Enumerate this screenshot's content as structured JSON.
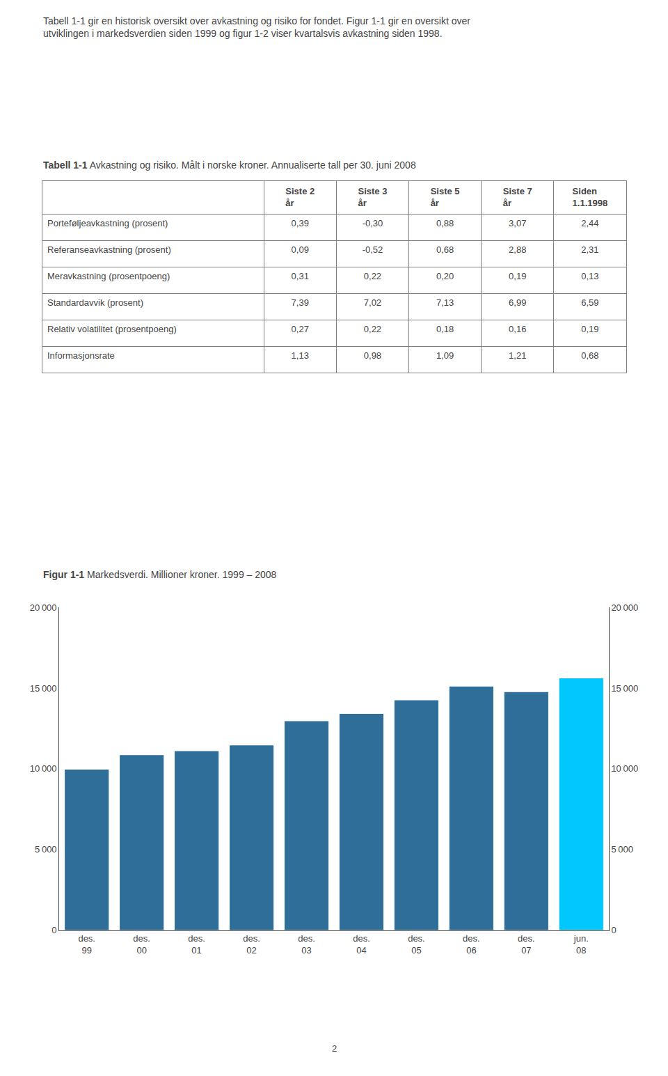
{
  "chart_data": [
    {
      "type": "table",
      "title": "Tabell 1-1",
      "subtitle": "Avkastning og risiko. Målt i norske kroner. Annualiserte tall per 30. juni 2008",
      "annotations": [
        "Tabell 1-1 gir en historisk oversikt over avkastning og risiko for fondet. Figur 1-1 gir en oversikt over utviklingen i markedsverdien siden 1999 og figur 1-2 viser kvartalsvis avkastning siden 1998."
      ],
      "categories": [
        "Porteføljeavkastning (prosent)",
        "Referanseavkastning (prosent)",
        "Meravkastning (prosentpoeng)",
        "Standardavvik (prosent)",
        "Relativ volatilitet (prosentpoeng)",
        "Informasjonsrate"
      ],
      "series": [
        {
          "name": "Siste 2\når",
          "values": [
            0.39,
            0.09,
            0.31,
            7.39,
            0.27,
            1.13
          ],
          "value_labels": [
            "0,39",
            "0,09",
            "0,31",
            "7,39",
            "0,27",
            "1,13"
          ]
        },
        {
          "name": "Siste 3\når",
          "values": [
            -0.3,
            -0.52,
            0.22,
            7.02,
            0.22,
            0.98
          ],
          "value_labels": [
            "-0,30",
            "-0,52",
            "0,22",
            "7,02",
            "0,22",
            "0,98"
          ]
        },
        {
          "name": "Siste 5\når",
          "values": [
            0.88,
            0.68,
            0.2,
            7.13,
            0.18,
            1.09
          ],
          "value_labels": [
            "0,88",
            "0,68",
            "0,20",
            "7,13",
            "0,18",
            "1,09"
          ]
        },
        {
          "name": "Siste 7\når",
          "values": [
            3.07,
            2.88,
            0.19,
            6.99,
            0.16,
            1.21
          ],
          "value_labels": [
            "3,07",
            "2,88",
            "0,19",
            "6,99",
            "0,16",
            "1,21"
          ]
        },
        {
          "name": "Siden\n1.1.1998",
          "values": [
            2.44,
            2.31,
            0.13,
            6.59,
            0.19,
            0.68
          ],
          "value_labels": [
            "2,44",
            "2,31",
            "0,13",
            "6,59",
            "0,19",
            "0,68"
          ]
        }
      ]
    },
    {
      "type": "bar",
      "title": "Figur 1-1",
      "subtitle": "Markedsverdi. Millioner kroner. 1999 – 2008",
      "annotations": [
        "2"
      ],
      "categories": [
        "des.\n99",
        "des.\n00",
        "des.\n01",
        "des.\n02",
        "des.\n03",
        "des.\n04",
        "des.\n05",
        "des.\n06",
        "des.\n07",
        "jun.\n08"
      ],
      "values": [
        9950,
        10850,
        11100,
        11450,
        12950,
        13400,
        14250,
        15100,
        14750,
        15600
      ],
      "colors": [
        "#2e6e99",
        "#2e6e99",
        "#2e6e99",
        "#2e6e99",
        "#2e6e99",
        "#2e6e99",
        "#2e6e99",
        "#2e6e99",
        "#2e6e99",
        "#00c8ff"
      ],
      "ylim": [
        0,
        20000
      ],
      "yticks": [
        0,
        {
          "value": 5000,
          "label": "5 000"
        },
        {
          "value": 10000,
          "label": "10 000"
        },
        {
          "value": 15000,
          "label": "15 000"
        },
        {
          "value": 20000,
          "label": "20 000"
        }
      ],
      "y2lim": [
        0,
        20000
      ],
      "y2ticks": [
        0,
        {
          "value": 5000,
          "label": "5 000"
        },
        {
          "value": 10000,
          "label": "10 000"
        },
        {
          "value": 15000,
          "label": "15 000"
        },
        {
          "value": 20000,
          "label": "20 000"
        }
      ],
      "grid": false
    }
  ]
}
